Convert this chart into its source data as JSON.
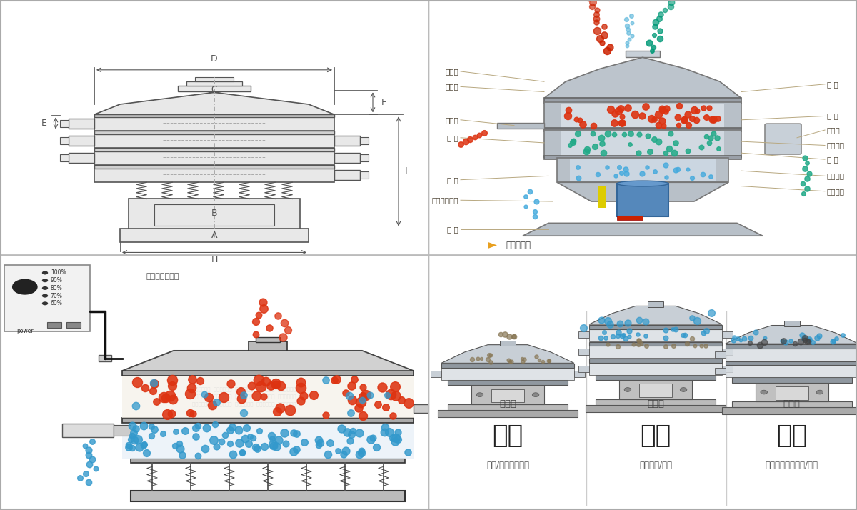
{
  "bg_color": "#ffffff",
  "border_color": "#cccccc",
  "left_labels_top": [
    "进料口",
    "防尘盖",
    "出料口",
    "束 环",
    "弹 簧",
    "运输固定螺栓",
    "机 座"
  ],
  "right_labels_top": [
    "筛 网",
    "网 架",
    "加重块",
    "上部重锤",
    "筛 盘",
    "振动电机",
    "下部重锤"
  ],
  "dim_labels": [
    "D",
    "C",
    "F",
    "E",
    "B",
    "A",
    "H",
    "I"
  ],
  "bottom_left_labels": [
    "分级",
    "颗粒/粉末准确分级"
  ],
  "bottom_mid_labels": [
    "过滤",
    "去除异物/结块"
  ],
  "bottom_right_labels": [
    "除杂",
    "去除液体中的颗粒/异物"
  ],
  "single_layer": "单层式",
  "three_layer": "三层式",
  "double_layer": "双层式",
  "waijin_label": "外形尺寸示意图",
  "jiegou_label": "结构示意图",
  "text_color": "#333333",
  "line_color": "#8b7355",
  "gray_body": "#d0d0d0",
  "gray_dark": "#555555",
  "gray_med": "#888888",
  "gray_light": "#e8e8e8",
  "dashed_color": "#aaaaaa",
  "label_line_color": "#b8a880",
  "red_particle": "#dd3311",
  "blue_particle": "#3399cc",
  "teal_particle": "#22aa88",
  "accent_orange": "#e8a020",
  "accent_blue": "#3388cc"
}
